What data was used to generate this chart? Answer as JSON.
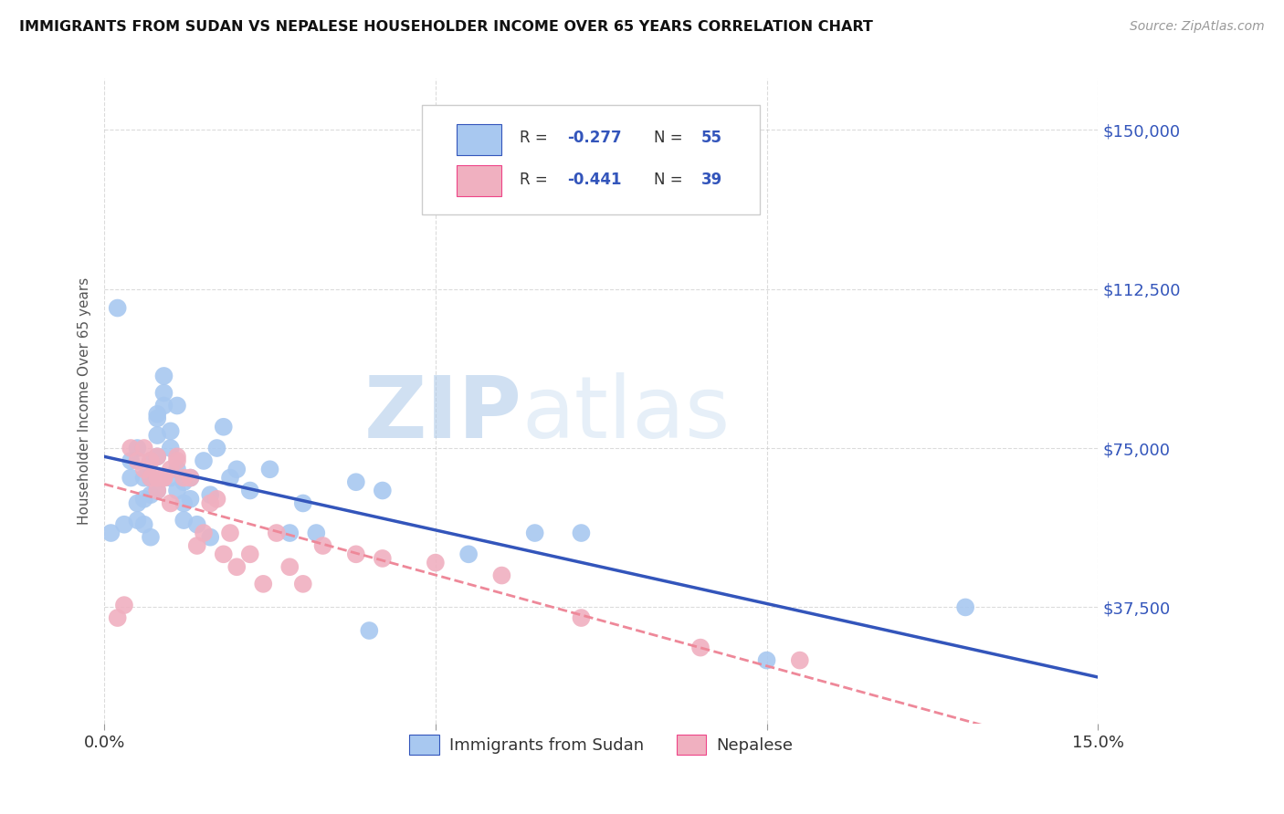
{
  "title": "IMMIGRANTS FROM SUDAN VS NEPALESE HOUSEHOLDER INCOME OVER 65 YEARS CORRELATION CHART",
  "source": "Source: ZipAtlas.com",
  "ylabel": "Householder Income Over 65 years",
  "ytick_labels": [
    "$150,000",
    "$112,500",
    "$75,000",
    "$37,500"
  ],
  "ytick_values": [
    150000,
    112500,
    75000,
    37500
  ],
  "xmin": 0.0,
  "xmax": 0.15,
  "ymin": 10000,
  "ymax": 162000,
  "legend_label1": "Immigrants from Sudan",
  "legend_label2": "Nepalese",
  "color_blue": "#a8c8f0",
  "color_pink": "#f0b0c0",
  "color_blue_line": "#3355bb",
  "color_pink_line": "#ee4488",
  "color_pink_dash": "#ee8899",
  "color_grid": "#cccccc",
  "watermark_color": "#ccddef",
  "R1": -0.277,
  "N1": 55,
  "R2": -0.441,
  "N2": 39,
  "sudan_x": [
    0.001,
    0.002,
    0.003,
    0.004,
    0.004,
    0.005,
    0.005,
    0.005,
    0.006,
    0.006,
    0.006,
    0.007,
    0.007,
    0.007,
    0.007,
    0.008,
    0.008,
    0.008,
    0.008,
    0.008,
    0.009,
    0.009,
    0.009,
    0.01,
    0.01,
    0.01,
    0.011,
    0.011,
    0.011,
    0.012,
    0.012,
    0.012,
    0.013,
    0.013,
    0.014,
    0.015,
    0.016,
    0.016,
    0.017,
    0.018,
    0.019,
    0.02,
    0.022,
    0.025,
    0.028,
    0.03,
    0.032,
    0.038,
    0.04,
    0.042,
    0.055,
    0.065,
    0.072,
    0.1,
    0.13
  ],
  "sudan_y": [
    55000,
    108000,
    57000,
    72000,
    68000,
    75000,
    62000,
    58000,
    68000,
    63000,
    57000,
    72000,
    64000,
    54000,
    68000,
    78000,
    73000,
    65000,
    83000,
    82000,
    88000,
    85000,
    92000,
    68000,
    75000,
    79000,
    85000,
    70000,
    65000,
    67000,
    62000,
    58000,
    68000,
    63000,
    57000,
    72000,
    64000,
    54000,
    75000,
    80000,
    68000,
    70000,
    65000,
    70000,
    55000,
    62000,
    55000,
    67000,
    32000,
    65000,
    50000,
    55000,
    55000,
    25000,
    37500
  ],
  "nepal_x": [
    0.002,
    0.003,
    0.004,
    0.005,
    0.006,
    0.006,
    0.007,
    0.007,
    0.008,
    0.008,
    0.008,
    0.009,
    0.009,
    0.01,
    0.01,
    0.011,
    0.011,
    0.012,
    0.013,
    0.014,
    0.015,
    0.016,
    0.017,
    0.018,
    0.019,
    0.02,
    0.022,
    0.024,
    0.026,
    0.028,
    0.03,
    0.033,
    0.038,
    0.042,
    0.05,
    0.06,
    0.072,
    0.09,
    0.105
  ],
  "nepal_y": [
    35000,
    38000,
    75000,
    72000,
    75000,
    70000,
    72000,
    68000,
    73000,
    65000,
    68000,
    68000,
    68000,
    62000,
    70000,
    73000,
    72000,
    68000,
    68000,
    52000,
    55000,
    62000,
    63000,
    50000,
    55000,
    47000,
    50000,
    43000,
    55000,
    47000,
    43000,
    52000,
    50000,
    49000,
    48000,
    45000,
    35000,
    28000,
    25000
  ]
}
